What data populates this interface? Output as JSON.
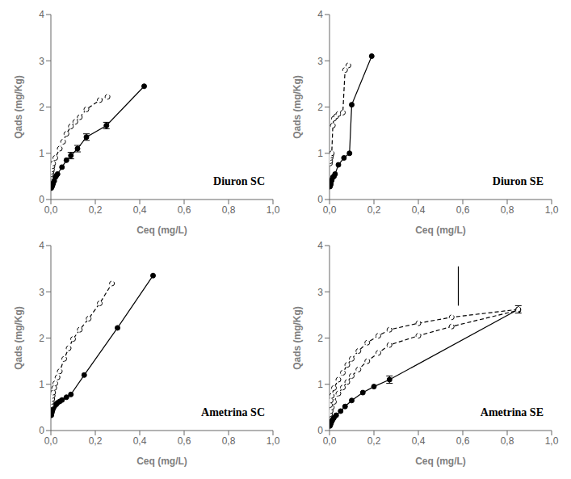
{
  "chart_data": [
    {
      "type": "line",
      "title": "Diuron SC",
      "xlabel": "Ceq (mg/L)",
      "ylabel": "Qads (mg/Kg)",
      "xlim": [
        0,
        1.0
      ],
      "ylim": [
        0,
        4
      ],
      "xticks": [
        {
          "value": 0.0,
          "label": "0,0"
        },
        {
          "value": 0.2,
          "label": "0,2"
        },
        {
          "value": 0.4,
          "label": "0,4"
        },
        {
          "value": 0.6,
          "label": "0,6"
        },
        {
          "value": 0.8,
          "label": "0,8"
        },
        {
          "value": 1.0,
          "label": "1,0"
        }
      ],
      "yticks": [
        0,
        1,
        2,
        3,
        4
      ],
      "grid": false,
      "series": [
        {
          "x": [
            0.002,
            0.003,
            0.005,
            0.006,
            0.008,
            0.01,
            0.015,
            0.02,
            0.025,
            0.03,
            0.05,
            0.07,
            0.09,
            0.12,
            0.16,
            0.25,
            0.42
          ],
          "values": [
            0.25,
            0.27,
            0.28,
            0.3,
            0.32,
            0.35,
            0.4,
            0.48,
            0.52,
            0.55,
            0.7,
            0.85,
            0.95,
            1.1,
            1.35,
            1.6,
            2.45
          ],
          "color": "#000000",
          "line_style": "solid",
          "marker": "filled_circle",
          "error_bars": {
            "x": [
              0.09,
              0.12,
              0.16,
              0.25
            ],
            "y": [
              0.95,
              1.1,
              1.35,
              1.6
            ],
            "yerr": [
              0.07,
              0.07,
              0.07,
              0.07
            ]
          }
        },
        {
          "x": [
            0.002,
            0.003,
            0.005,
            0.007,
            0.01,
            0.02,
            0.04,
            0.055,
            0.07,
            0.09,
            0.11,
            0.13,
            0.16,
            0.22,
            0.255
          ],
          "values": [
            0.55,
            0.6,
            0.65,
            0.72,
            0.78,
            0.9,
            1.1,
            1.25,
            1.42,
            1.58,
            1.68,
            1.78,
            1.95,
            2.15,
            2.22
          ],
          "color": "#000000",
          "line_style": "dashed",
          "marker": "open_circle"
        }
      ]
    },
    {
      "type": "line",
      "title": "Diuron SE",
      "xlabel": "Ceq (mg/L)",
      "ylabel": "Qads (mg/Kg)",
      "xlim": [
        0,
        1.0
      ],
      "ylim": [
        0,
        4
      ],
      "xticks": [
        {
          "value": 0.0,
          "label": "0,0"
        },
        {
          "value": 0.2,
          "label": "0,2"
        },
        {
          "value": 0.4,
          "label": "0,4"
        },
        {
          "value": 0.6,
          "label": "0,6"
        },
        {
          "value": 0.8,
          "label": "0,8"
        },
        {
          "value": 1.0,
          "label": "1,0"
        }
      ],
      "yticks": [
        0,
        1,
        2,
        3,
        4
      ],
      "grid": false,
      "series": [
        {
          "x": [
            0.002,
            0.003,
            0.005,
            0.006,
            0.008,
            0.01,
            0.015,
            0.02,
            0.025,
            0.04,
            0.065,
            0.09,
            0.1,
            0.19
          ],
          "values": [
            0.28,
            0.3,
            0.32,
            0.35,
            0.4,
            0.42,
            0.48,
            0.5,
            0.55,
            0.75,
            0.9,
            1.0,
            2.05,
            3.1
          ],
          "color": "#000000",
          "line_style": "solid",
          "marker": "filled_circle"
        },
        {
          "x": [
            0.002,
            0.003,
            0.005,
            0.007,
            0.01,
            0.015,
            0.02,
            0.03,
            0.04,
            0.06,
            0.07,
            0.085
          ],
          "values": [
            0.78,
            0.83,
            0.9,
            0.95,
            1.0,
            1.6,
            1.75,
            1.8,
            1.85,
            1.88,
            2.8,
            2.9
          ],
          "color": "#000000",
          "line_style": "dashed",
          "marker": "open_circle"
        }
      ]
    },
    {
      "type": "line",
      "title": "Ametrina SC",
      "xlabel": "Ceq (mg/L)",
      "ylabel": "Qads (mg/Kg)",
      "xlim": [
        0,
        1.0
      ],
      "ylim": [
        0,
        4
      ],
      "xticks": [
        {
          "value": 0.0,
          "label": "0,0"
        },
        {
          "value": 0.2,
          "label": "0,2"
        },
        {
          "value": 0.4,
          "label": "0,4"
        },
        {
          "value": 0.6,
          "label": "0,6"
        },
        {
          "value": 0.8,
          "label": "0,8"
        },
        {
          "value": 1.0,
          "label": "1,0"
        }
      ],
      "yticks": [
        0,
        1,
        2,
        3,
        4
      ],
      "grid": false,
      "series": [
        {
          "x": [
            0.002,
            0.004,
            0.006,
            0.008,
            0.01,
            0.015,
            0.02,
            0.025,
            0.03,
            0.04,
            0.05,
            0.07,
            0.09,
            0.15,
            0.3,
            0.46
          ],
          "values": [
            0.33,
            0.38,
            0.42,
            0.45,
            0.48,
            0.52,
            0.55,
            0.57,
            0.6,
            0.63,
            0.66,
            0.72,
            0.78,
            1.2,
            2.22,
            3.35
          ],
          "color": "#000000",
          "line_style": "solid",
          "marker": "filled_circle"
        },
        {
          "x": [
            0.002,
            0.004,
            0.006,
            0.008,
            0.01,
            0.015,
            0.02,
            0.03,
            0.04,
            0.06,
            0.08,
            0.1,
            0.13,
            0.17,
            0.22,
            0.275
          ],
          "values": [
            0.55,
            0.62,
            0.68,
            0.75,
            0.82,
            0.92,
            1.02,
            1.15,
            1.28,
            1.55,
            1.78,
            1.98,
            2.18,
            2.42,
            2.75,
            3.18
          ],
          "color": "#000000",
          "line_style": "dashed",
          "marker": "open_circle"
        }
      ]
    },
    {
      "type": "line",
      "title": "Ametrina SE",
      "xlabel": "Ceq (mg/L)",
      "ylabel": "Qads (mg/Kg)",
      "xlim": [
        0,
        1.0
      ],
      "ylim": [
        0,
        4
      ],
      "xticks": [
        {
          "value": 0.0,
          "label": "0,0"
        },
        {
          "value": 0.2,
          "label": "0,2"
        },
        {
          "value": 0.4,
          "label": "0,4"
        },
        {
          "value": 0.6,
          "label": "0,6"
        },
        {
          "value": 0.8,
          "label": "0,8"
        },
        {
          "value": 1.0,
          "label": "1,0"
        }
      ],
      "yticks": [
        0,
        1,
        2,
        3,
        4
      ],
      "grid": false,
      "series": [
        {
          "x": [
            0.002,
            0.004,
            0.006,
            0.008,
            0.01,
            0.015,
            0.02,
            0.03,
            0.05,
            0.07,
            0.1,
            0.15,
            0.2,
            0.27,
            0.85
          ],
          "values": [
            0.1,
            0.13,
            0.15,
            0.18,
            0.2,
            0.24,
            0.28,
            0.33,
            0.42,
            0.52,
            0.65,
            0.82,
            0.95,
            1.1,
            2.62
          ],
          "color": "#000000",
          "line_style": "solid",
          "marker": "filled_circle",
          "error_bars": {
            "x": [
              0.27,
              0.85
            ],
            "y": [
              1.1,
              2.62
            ],
            "yerr": [
              0.08,
              0.08
            ]
          }
        },
        {
          "x": [
            0.002,
            0.005,
            0.01,
            0.02,
            0.04,
            0.06,
            0.08,
            0.1,
            0.13,
            0.17,
            0.22,
            0.27,
            0.4,
            0.55,
            0.85
          ],
          "values": [
            0.35,
            0.42,
            0.5,
            0.62,
            0.8,
            0.93,
            1.05,
            1.18,
            1.32,
            1.5,
            1.68,
            1.85,
            2.05,
            2.25,
            2.6
          ],
          "color": "#000000",
          "line_style": "dashed",
          "marker": "open_circle"
        },
        {
          "x": [
            0.002,
            0.005,
            0.01,
            0.02,
            0.04,
            0.06,
            0.08,
            0.1,
            0.13,
            0.17,
            0.22,
            0.27,
            0.4,
            0.55,
            0.85
          ],
          "values": [
            0.55,
            0.65,
            0.75,
            0.92,
            1.1,
            1.25,
            1.42,
            1.55,
            1.72,
            1.9,
            2.05,
            2.18,
            2.32,
            2.45,
            2.62
          ],
          "color": "#000000",
          "line_style": "dashed",
          "marker": "open_circle"
        },
        {
          "x": [
            0.58,
            0.58
          ],
          "values": [
            2.7,
            3.55
          ],
          "color": "#000000",
          "line_style": "solid",
          "marker": "none"
        }
      ]
    }
  ]
}
